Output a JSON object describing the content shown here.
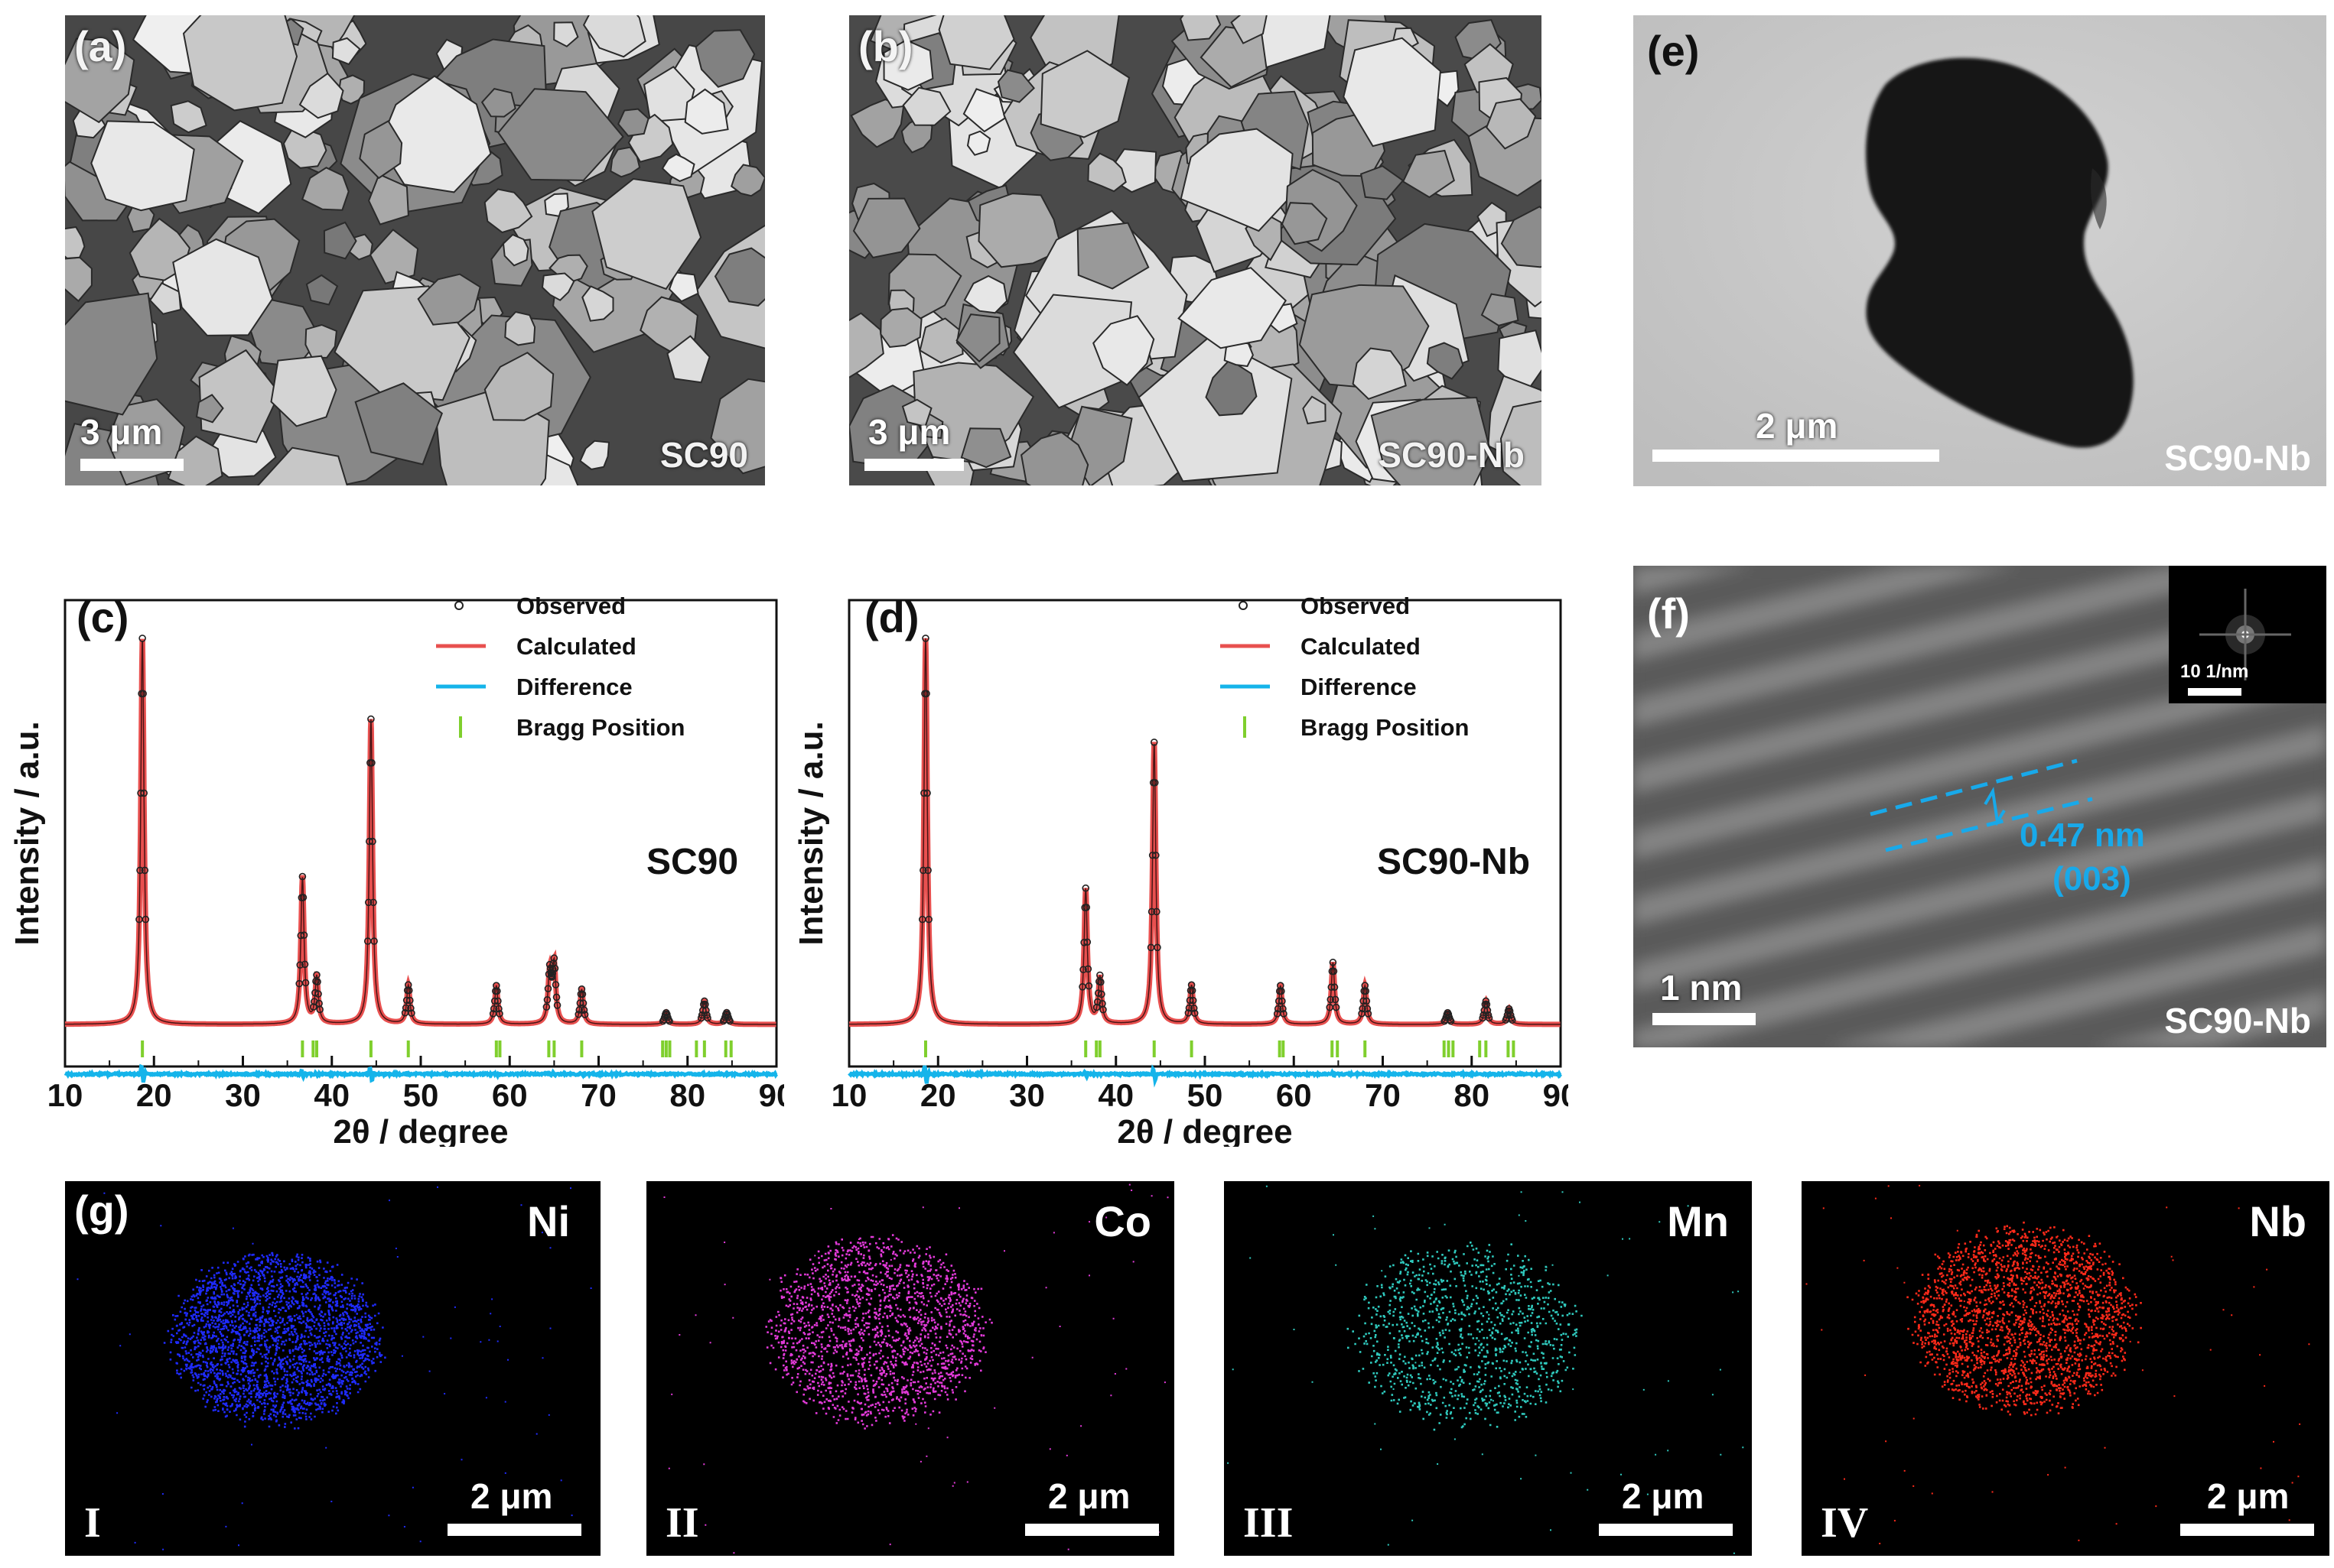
{
  "panels": {
    "a": {
      "label": "(a)",
      "scale_bar": "3 μm",
      "sample": "SC90"
    },
    "b": {
      "label": "(b)",
      "scale_bar": "3 μm",
      "sample": "SC90-Nb"
    },
    "e": {
      "label": "(e)",
      "scale_bar": "2 μm",
      "sample": "SC90-Nb"
    },
    "f": {
      "label": "(f)",
      "scale_bar": "1 nm",
      "sample": "SC90-Nb",
      "inset_scale": "10 1/nm",
      "d_spacing": "0.47 nm",
      "plane": "(003)"
    },
    "g": {
      "label": "(g)"
    }
  },
  "eds_maps": [
    {
      "element": "Ni",
      "roman": "I",
      "scale_bar": "2 μm",
      "color": "#1f2bff"
    },
    {
      "element": "Co",
      "roman": "II",
      "scale_bar": "2 μm",
      "color": "#e23ad9"
    },
    {
      "element": "Mn",
      "roman": "III",
      "scale_bar": "2 μm",
      "color": "#2fc9bd"
    },
    {
      "element": "Nb",
      "roman": "IV",
      "scale_bar": "2 μm",
      "color": "#ff2a1a"
    }
  ],
  "chart_data": [
    {
      "type": "line",
      "panel_label": "(c)",
      "sample_label": "SC90",
      "xlabel": "2θ / degree",
      "ylabel": "Intensity / a.u.",
      "xlim": [
        10,
        90
      ],
      "xticks": [
        10,
        20,
        30,
        40,
        50,
        60,
        70,
        80,
        90
      ],
      "legend": [
        "Observed",
        "Calculated",
        "Difference",
        "Bragg Position"
      ],
      "legend_position": "top-right",
      "colors": {
        "observed": "#222222",
        "calculated": "#e8504f",
        "difference": "#15b4ea",
        "bragg": "#7fcf2d"
      },
      "peaks": [
        {
          "x": 18.7,
          "h": 100
        },
        {
          "x": 36.7,
          "h": 38
        },
        {
          "x": 38.3,
          "h": 12
        },
        {
          "x": 44.4,
          "h": 79
        },
        {
          "x": 48.6,
          "h": 10
        },
        {
          "x": 58.5,
          "h": 10
        },
        {
          "x": 64.5,
          "h": 13
        },
        {
          "x": 65.0,
          "h": 15
        },
        {
          "x": 68.1,
          "h": 9
        },
        {
          "x": 77.6,
          "h": 3
        },
        {
          "x": 81.9,
          "h": 6
        },
        {
          "x": 84.4,
          "h": 3
        }
      ],
      "bragg_positions": [
        18.7,
        36.7,
        37.9,
        38.3,
        44.4,
        48.6,
        58.5,
        58.9,
        64.4,
        65.0,
        68.1,
        77.2,
        77.6,
        78.0,
        81.0,
        81.9,
        84.3,
        84.9
      ]
    },
    {
      "type": "line",
      "panel_label": "(d)",
      "sample_label": "SC90-Nb",
      "xlabel": "2θ / degree",
      "ylabel": "Intensity / a.u.",
      "xlim": [
        10,
        90
      ],
      "xticks": [
        10,
        20,
        30,
        40,
        50,
        60,
        70,
        80,
        90
      ],
      "legend": [
        "Observed",
        "Calculated",
        "Difference",
        "Bragg Position"
      ],
      "legend_position": "top-right",
      "colors": {
        "observed": "#222222",
        "calculated": "#e8504f",
        "difference": "#15b4ea",
        "bragg": "#7fcf2d"
      },
      "peaks": [
        {
          "x": 18.6,
          "h": 100
        },
        {
          "x": 36.6,
          "h": 35
        },
        {
          "x": 38.2,
          "h": 12
        },
        {
          "x": 44.3,
          "h": 73
        },
        {
          "x": 48.5,
          "h": 10
        },
        {
          "x": 58.5,
          "h": 10
        },
        {
          "x": 64.4,
          "h": 16
        },
        {
          "x": 68.0,
          "h": 10
        },
        {
          "x": 77.3,
          "h": 3
        },
        {
          "x": 81.6,
          "h": 6
        },
        {
          "x": 84.2,
          "h": 4
        }
      ],
      "bragg_positions": [
        18.6,
        36.6,
        37.8,
        38.2,
        44.3,
        48.5,
        58.4,
        58.8,
        64.3,
        64.9,
        68.0,
        76.9,
        77.4,
        77.9,
        80.9,
        81.6,
        84.1,
        84.7
      ]
    }
  ]
}
